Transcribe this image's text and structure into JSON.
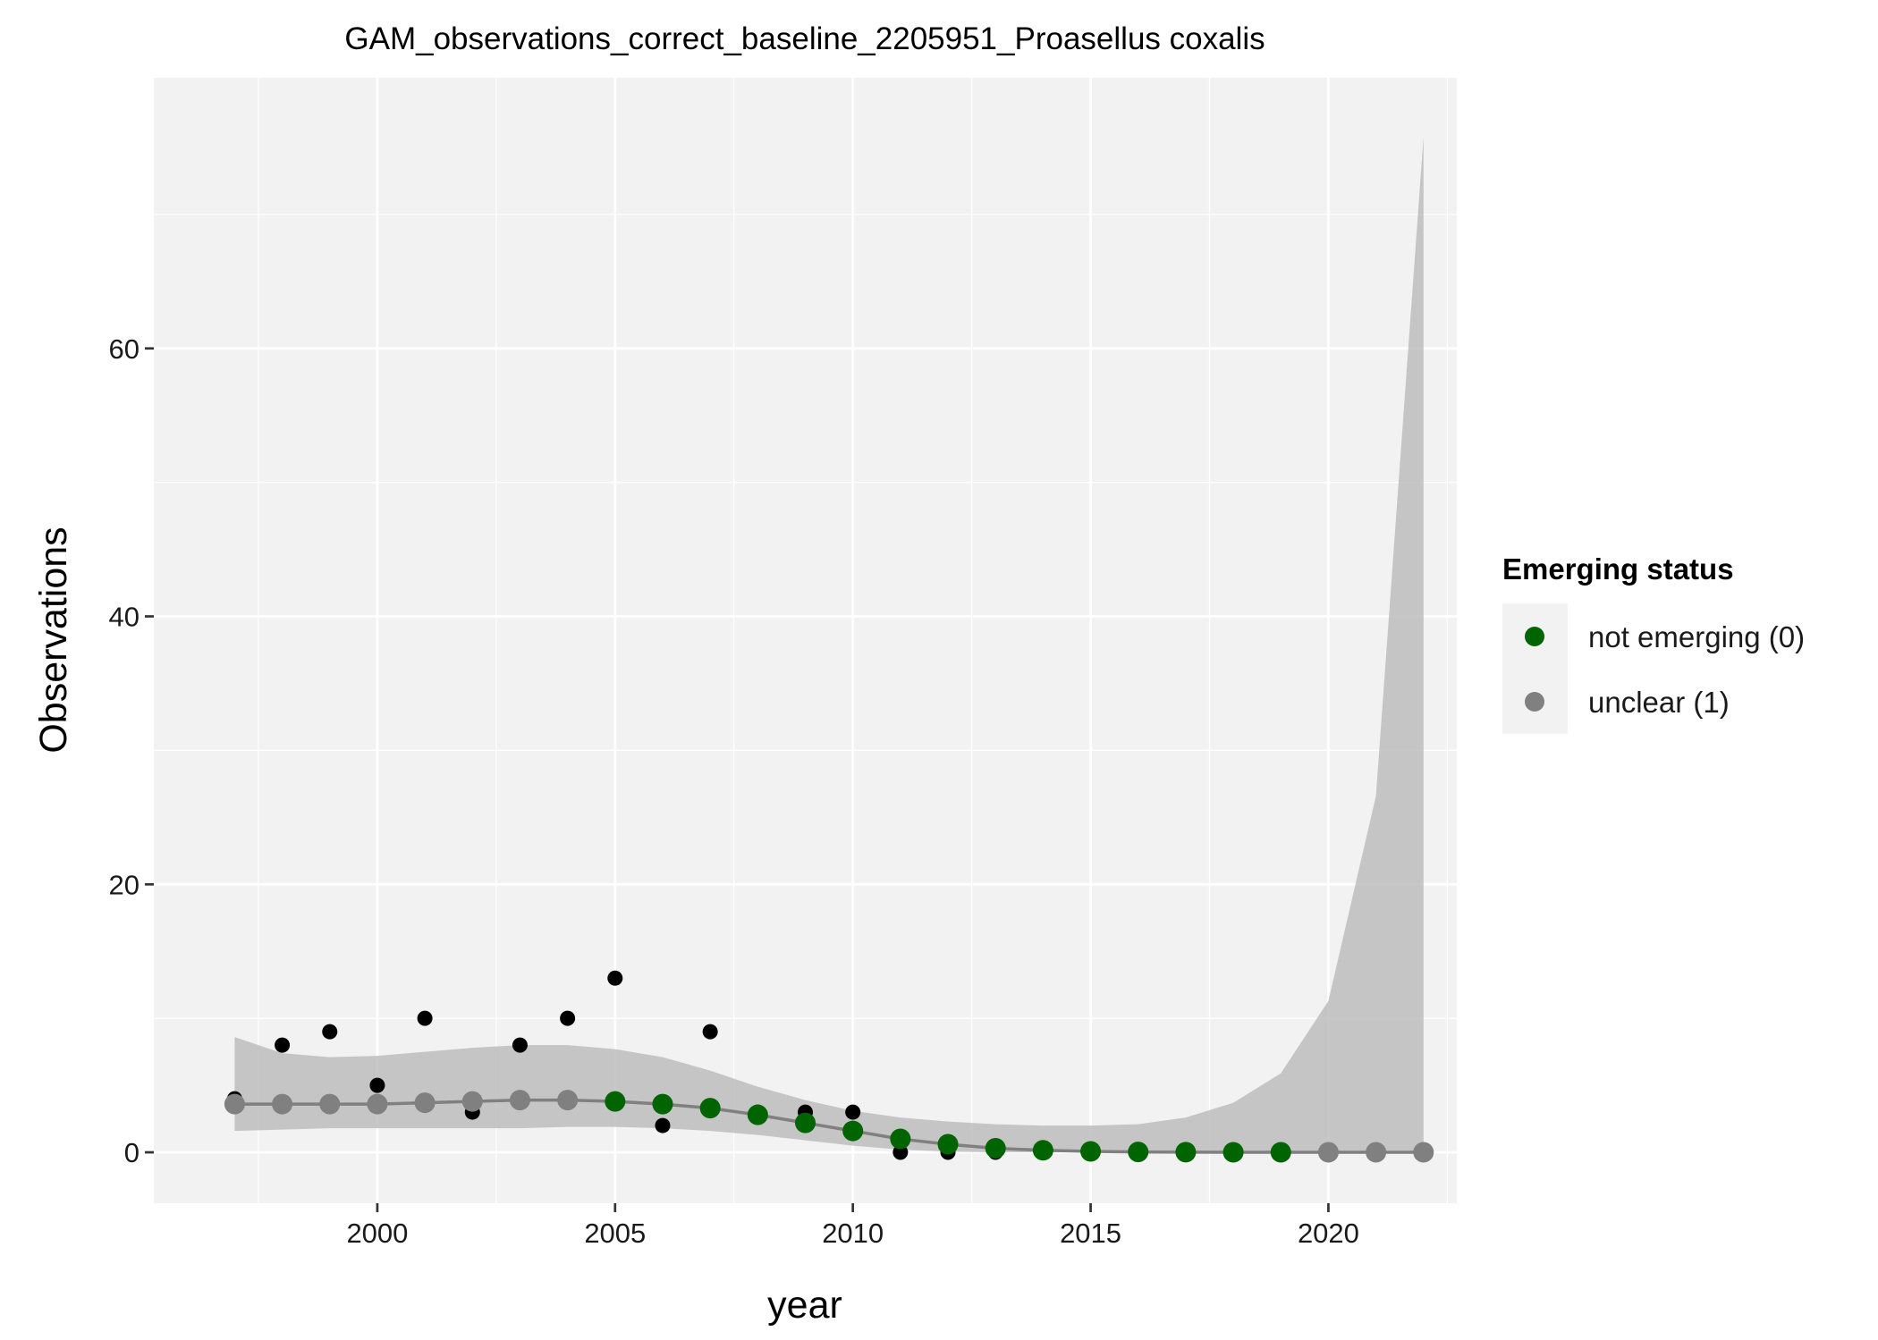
{
  "chart_data": {
    "type": "line",
    "title": "GAM_observations_correct_baseline_2205951_Proasellus coxalis",
    "xlabel": "year",
    "ylabel": "Observations",
    "xlim": [
      1995.3,
      2022.7
    ],
    "ylim": [
      -3.8,
      80.2
    ],
    "x_ticks": [
      2000,
      2005,
      2010,
      2015,
      2020
    ],
    "y_ticks": [
      0,
      20,
      40,
      60
    ],
    "grid": true,
    "legend": {
      "title": "Emerging status",
      "placement": "right",
      "entries": [
        {
          "label": "not emerging (0)",
          "color": "#006400"
        },
        {
          "label": "unclear (1)",
          "color": "#808080"
        }
      ]
    },
    "observed": {
      "x": [
        1997,
        1998,
        1999,
        2000,
        2001,
        2002,
        2003,
        2004,
        2005,
        2006,
        2007,
        2008,
        2009,
        2010,
        2011,
        2012,
        2013,
        2014,
        2015,
        2016,
        2017,
        2018,
        2019,
        2020,
        2021,
        2022
      ],
      "y": [
        4,
        8,
        9,
        5,
        10,
        3,
        8,
        10,
        13,
        2,
        9,
        3,
        3,
        3,
        0,
        0,
        0,
        0,
        0,
        0,
        0,
        0,
        0,
        0,
        0,
        0
      ],
      "color": "#000000"
    },
    "fit": {
      "x": [
        1997,
        1998,
        1999,
        2000,
        2001,
        2002,
        2003,
        2004,
        2005,
        2006,
        2007,
        2008,
        2009,
        2010,
        2011,
        2012,
        2013,
        2014,
        2015,
        2016,
        2017,
        2018,
        2019,
        2020,
        2021,
        2022
      ],
      "y": [
        3.6,
        3.6,
        3.6,
        3.6,
        3.7,
        3.8,
        3.9,
        3.9,
        3.8,
        3.6,
        3.3,
        2.8,
        2.2,
        1.6,
        1.0,
        0.6,
        0.3,
        0.15,
        0.07,
        0.03,
        0.01,
        0.0,
        0.0,
        0.0,
        0.0,
        0.0
      ],
      "lower": [
        1.6,
        1.7,
        1.8,
        1.8,
        1.8,
        1.8,
        1.8,
        1.9,
        1.9,
        1.8,
        1.6,
        1.3,
        0.9,
        0.5,
        0.2,
        0.05,
        0.0,
        0.0,
        0.0,
        0.0,
        0.0,
        0.0,
        0.0,
        0.0,
        0.0,
        0.0
      ],
      "upper": [
        8.6,
        7.4,
        7.1,
        7.2,
        7.5,
        7.8,
        8.0,
        8.0,
        7.7,
        7.1,
        6.1,
        4.9,
        3.9,
        3.1,
        2.6,
        2.3,
        2.1,
        2.0,
        2.0,
        2.1,
        2.6,
        3.7,
        5.9,
        11.3,
        26.6,
        75.8
      ],
      "status": [
        1,
        1,
        1,
        1,
        1,
        1,
        1,
        1,
        0,
        0,
        0,
        0,
        0,
        0,
        0,
        0,
        0,
        0,
        0,
        0,
        0,
        0,
        0,
        1,
        1,
        1
      ],
      "line_color": "#808080",
      "ribbon_color": "#bdbdbd"
    },
    "colors": {
      "panel_background": "#f2f2f2",
      "grid": "#ffffff",
      "not_emerging": "#006400",
      "unclear": "#808080"
    }
  }
}
